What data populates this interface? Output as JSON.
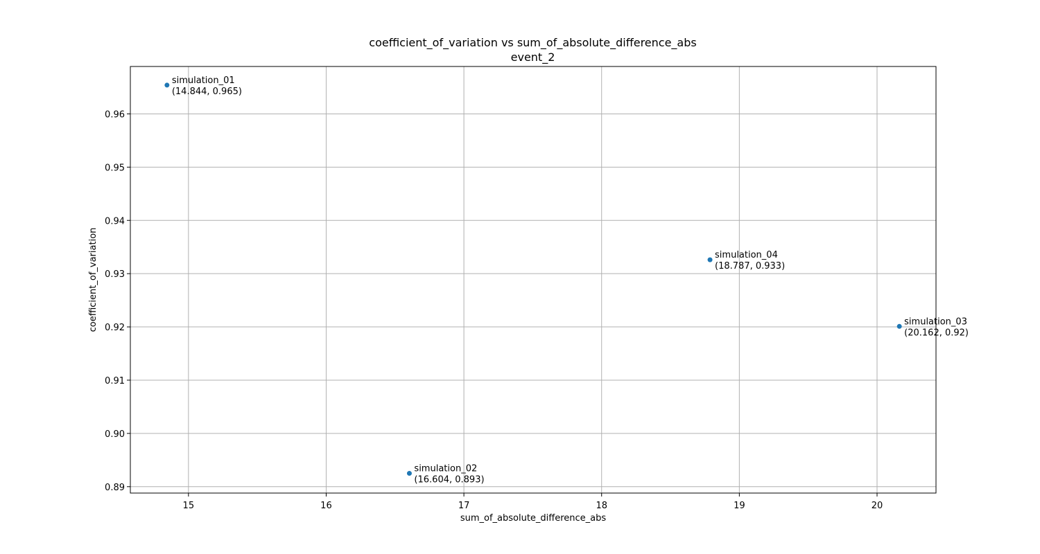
{
  "chart_data": {
    "type": "scatter",
    "title": "coefficient_of_variation vs sum_of_absolute_difference_abs",
    "subtitle": "event_2",
    "xlabel": "sum_of_absolute_difference_abs",
    "ylabel": "coefficient_of_variation",
    "xlim": [
      14.578,
      20.428
    ],
    "ylim": [
      0.8888,
      0.9689
    ],
    "xticks": [
      15,
      16,
      17,
      18,
      19,
      20
    ],
    "yticks": [
      0.89,
      0.9,
      0.91,
      0.92,
      0.93,
      0.94,
      0.95,
      0.96
    ],
    "xtick_labels": [
      "15",
      "16",
      "17",
      "18",
      "19",
      "20"
    ],
    "ytick_labels": [
      "0.89",
      "0.90",
      "0.91",
      "0.92",
      "0.93",
      "0.94",
      "0.95",
      "0.96"
    ],
    "grid": true,
    "marker_color": "#1f77b4",
    "points": [
      {
        "name": "simulation_01",
        "x": 14.844,
        "y": 0.9654,
        "coord_label": "(14.844, 0.965)"
      },
      {
        "name": "simulation_02",
        "x": 16.604,
        "y": 0.8925,
        "coord_label": "(16.604, 0.893)"
      },
      {
        "name": "simulation_03",
        "x": 20.162,
        "y": 0.9201,
        "coord_label": "(20.162, 0.92)"
      },
      {
        "name": "simulation_04",
        "x": 18.787,
        "y": 0.9326,
        "coord_label": "(18.787, 0.933)"
      }
    ]
  }
}
